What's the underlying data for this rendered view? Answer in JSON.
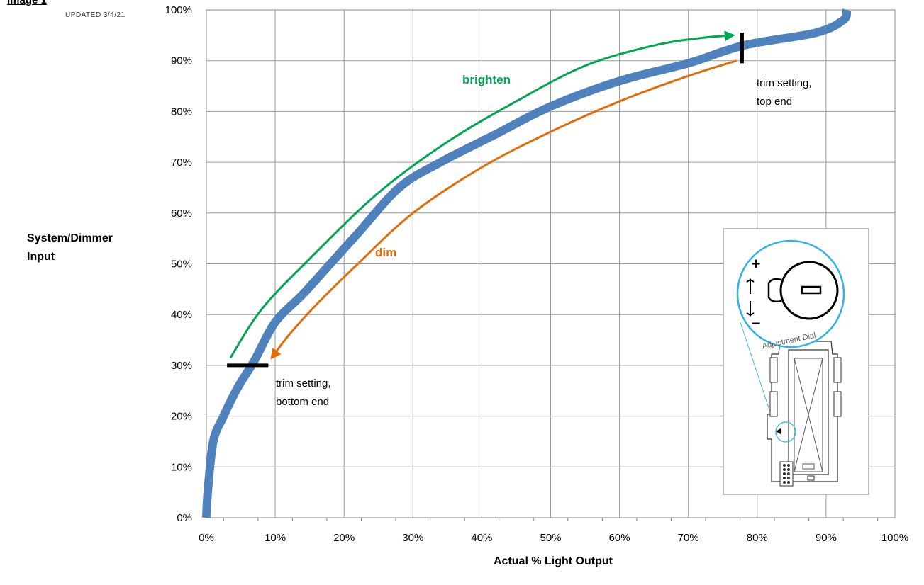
{
  "header": {
    "title": "Image 1",
    "updated": "UPDATED 3/4/21"
  },
  "chart_data": {
    "type": "line",
    "xlabel": "Actual % Light Output",
    "ylabel": [
      "System/Dimmer",
      "Input"
    ],
    "xlim": [
      0,
      100
    ],
    "ylim": [
      0,
      100
    ],
    "x_ticks": [
      "0%",
      "10%",
      "20%",
      "30%",
      "40%",
      "50%",
      "60%",
      "70%",
      "80%",
      "90%",
      "100%"
    ],
    "y_ticks": [
      "0%",
      "10%",
      "20%",
      "30%",
      "40%",
      "50%",
      "60%",
      "70%",
      "80%",
      "90%",
      "100%"
    ],
    "grid": true,
    "series": [
      {
        "color": "#4f81bd",
        "x": [
          0,
          0.2,
          1,
          2.5,
          4.5,
          7,
          10,
          14,
          18,
          22,
          28,
          34,
          42,
          50,
          60,
          70,
          78,
          88.5,
          92.5,
          93
        ],
        "y": [
          0,
          5,
          15,
          20,
          25.5,
          31,
          38.5,
          44,
          50,
          56,
          65,
          70,
          75.5,
          81,
          86,
          89.5,
          93,
          95.5,
          98,
          100
        ]
      }
    ],
    "annotations": {
      "brighten": {
        "label": "brighten",
        "color": "#00a650",
        "x": [
          3.5,
          8,
          15,
          25,
          35,
          45,
          55,
          65,
          72,
          76.5
        ],
        "y": [
          31.5,
          41,
          51,
          64,
          74,
          82,
          89,
          93,
          94.5,
          95
        ]
      },
      "dim": {
        "label": "dim",
        "color": "#e36c09",
        "x": [
          77,
          70,
          60,
          50,
          40,
          30,
          22,
          16,
          12,
          9.5
        ],
        "y": [
          90,
          87,
          82,
          76,
          69,
          60,
          50,
          42,
          36,
          31.5
        ]
      },
      "trim_top": {
        "label_lines": [
          "trim setting,",
          "top end"
        ],
        "x": 77.8,
        "y_range": [
          89.5,
          95.5
        ]
      },
      "trim_bottom": {
        "label_lines": [
          "trim setting,",
          "bottom  end"
        ],
        "y": 30,
        "x_range": [
          3,
          9
        ]
      }
    },
    "inset": {
      "description_icon": "dimmer-adjustment-dial-illustration",
      "dial_text": "Adjustment Dial",
      "plus": "+",
      "minus": "−"
    }
  }
}
